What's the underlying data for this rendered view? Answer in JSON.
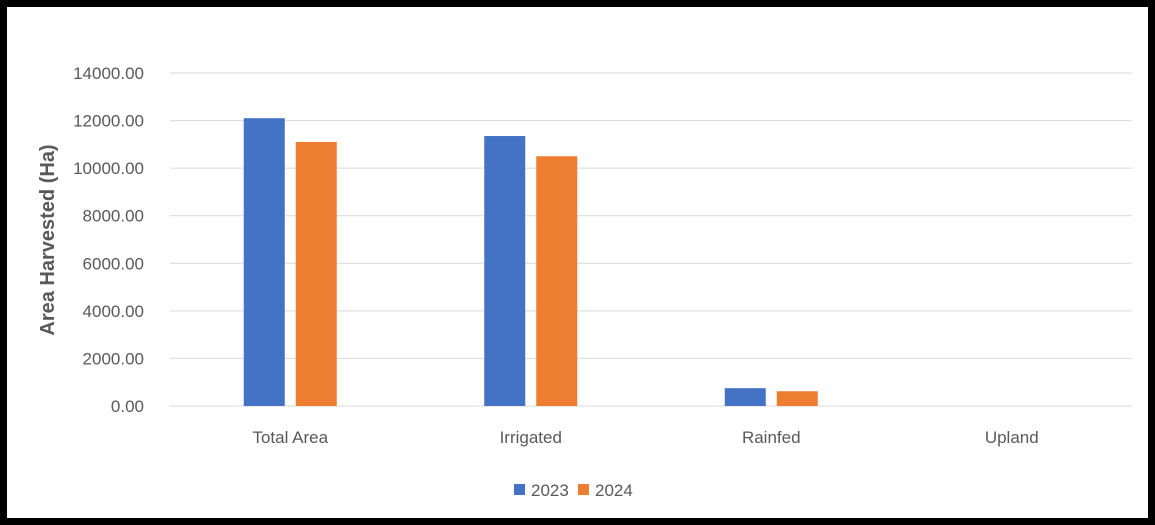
{
  "chart_data": {
    "type": "bar",
    "title": "",
    "xlabel": "",
    "ylabel": "Area Harvested (Ha)",
    "categories": [
      "Total Area",
      "Irrigated",
      "Rainfed",
      "Upland"
    ],
    "series": [
      {
        "name": "2023",
        "color": "#4472C4",
        "values": [
          12100,
          11350,
          750,
          0
        ]
      },
      {
        "name": "2024",
        "color": "#ED7D31",
        "values": [
          11100,
          10500,
          620,
          0
        ]
      }
    ],
    "ylim": [
      0,
      14000
    ],
    "yticks": [
      "0.00",
      "2000.00",
      "4000.00",
      "6000.00",
      "8000.00",
      "10000.00",
      "12000.00",
      "14000.00"
    ],
    "grid": true,
    "legend_position": "bottom"
  }
}
